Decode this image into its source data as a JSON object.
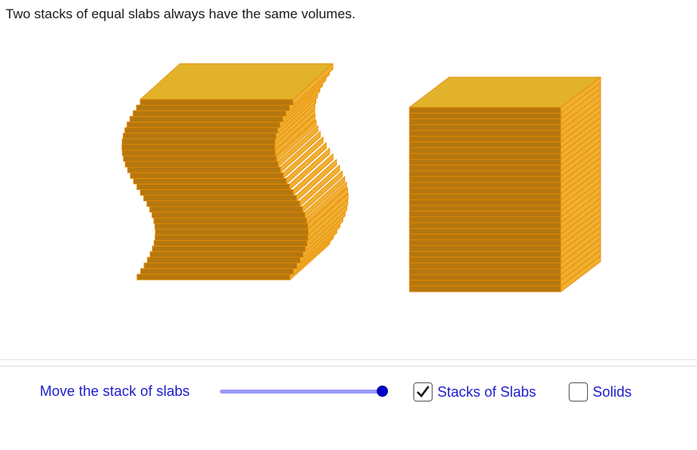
{
  "caption": "Two stacks of equal slabs always have the same volumes.",
  "controls": {
    "slider": {
      "label": "Move the stack of slabs",
      "value": 1.0
    },
    "stacks_checkbox": {
      "label": "Stacks of Slabs",
      "checked": true
    },
    "solids_checkbox": {
      "label": "Solids",
      "checked": false
    }
  },
  "scene": {
    "slab_count": 32,
    "colors": {
      "top_face": "#e3b22b",
      "front_face": "#b5770f",
      "side_face": "#f0b032",
      "edge": "#e88a00"
    }
  }
}
